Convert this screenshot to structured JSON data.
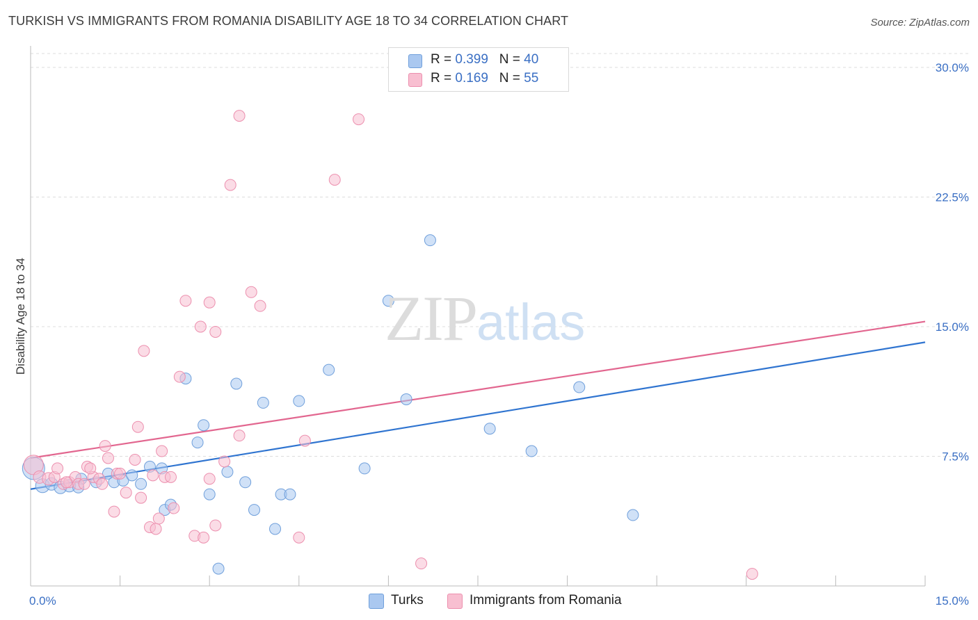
{
  "title": "TURKISH VS IMMIGRANTS FROM ROMANIA DISABILITY AGE 18 TO 34 CORRELATION CHART",
  "source": "Source: ZipAtlas.com",
  "watermark": {
    "zip": "ZIP",
    "atlas": "atlas"
  },
  "legend": {
    "rows": [
      {
        "r_label": "R =",
        "r_value": "0.399",
        "n_label": "N =",
        "n_value": "40"
      },
      {
        "r_label": "R =",
        "r_value": "0.169",
        "n_label": "N =",
        "n_value": "55"
      }
    ]
  },
  "bottom_legend": [
    "Turks",
    "Immigrants from Romania"
  ],
  "colors": {
    "turks_fill": "#aac8f0",
    "turks_stroke": "#6f9fdb",
    "turks_line": "#2f74d0",
    "romania_fill": "#f8bfd1",
    "romania_stroke": "#ec8fae",
    "romania_line": "#e2668f",
    "tick_text": "#3a6fc4",
    "grid": "#dddddd"
  },
  "chart_data": {
    "type": "scatter",
    "title": "TURKISH VS IMMIGRANTS FROM ROMANIA DISABILITY AGE 18 TO 34 CORRELATION CHART",
    "xlabel": "",
    "ylabel": "Disability Age 18 to 34",
    "xlim": [
      0,
      15
    ],
    "ylim": [
      0,
      30
    ],
    "x_tick_labels": [
      "0.0%",
      "15.0%"
    ],
    "y_ticks": [
      7.5,
      15,
      22.5,
      30
    ],
    "y_tick_labels": [
      "7.5%",
      "15.0%",
      "22.5%",
      "30.0%"
    ],
    "grid": true,
    "legend_position": "top-center",
    "series": [
      {
        "name": "Turks",
        "R": 0.399,
        "N": 40,
        "trend": {
          "x": [
            0,
            15
          ],
          "y": [
            5.6,
            14.1
          ]
        },
        "points": [
          [
            0.05,
            6.8,
            16
          ],
          [
            0.2,
            5.8,
            10
          ],
          [
            0.35,
            5.9,
            9
          ],
          [
            0.5,
            5.7,
            9
          ],
          [
            0.65,
            5.8,
            9
          ],
          [
            0.85,
            6.2,
            8
          ],
          [
            1.1,
            6.0,
            8
          ],
          [
            1.3,
            6.5,
            8
          ],
          [
            1.4,
            6.0,
            8
          ],
          [
            1.55,
            6.1,
            8
          ],
          [
            1.7,
            6.4,
            8
          ],
          [
            1.85,
            5.9,
            8
          ],
          [
            2.0,
            6.9,
            8
          ],
          [
            2.2,
            6.8,
            8
          ],
          [
            2.25,
            4.4,
            8
          ],
          [
            2.35,
            4.7,
            8
          ],
          [
            2.6,
            12.0,
            8
          ],
          [
            2.8,
            8.3,
            8
          ],
          [
            2.9,
            9.3,
            8
          ],
          [
            3.0,
            5.3,
            8
          ],
          [
            3.15,
            1.0,
            8
          ],
          [
            3.3,
            6.6,
            8
          ],
          [
            3.45,
            11.7,
            8
          ],
          [
            3.6,
            6.0,
            8
          ],
          [
            3.75,
            4.4,
            8
          ],
          [
            3.9,
            10.6,
            8
          ],
          [
            4.1,
            3.3,
            8
          ],
          [
            4.2,
            5.3,
            8
          ],
          [
            4.35,
            5.3,
            8
          ],
          [
            4.5,
            10.7,
            8
          ],
          [
            5.0,
            12.5,
            8
          ],
          [
            5.6,
            6.8,
            8
          ],
          [
            6.0,
            16.5,
            8
          ],
          [
            6.3,
            10.8,
            8
          ],
          [
            6.7,
            20.0,
            8
          ],
          [
            7.7,
            9.1,
            8
          ],
          [
            8.4,
            7.8,
            8
          ],
          [
            9.2,
            11.5,
            8
          ],
          [
            10.1,
            4.1,
            8
          ],
          [
            0.8,
            5.7,
            8
          ]
        ]
      },
      {
        "name": "Immigrants from Romania",
        "R": 0.169,
        "N": 55,
        "trend": {
          "x": [
            0,
            15
          ],
          "y": [
            7.4,
            15.3
          ]
        },
        "points": [
          [
            0.05,
            7.0,
            14
          ],
          [
            0.15,
            6.3,
            9
          ],
          [
            0.3,
            6.2,
            9
          ],
          [
            0.4,
            6.3,
            8
          ],
          [
            0.45,
            6.8,
            8
          ],
          [
            0.55,
            5.9,
            8
          ],
          [
            0.65,
            6.0,
            8
          ],
          [
            0.75,
            6.3,
            8
          ],
          [
            0.8,
            5.9,
            8
          ],
          [
            0.9,
            5.9,
            8
          ],
          [
            0.95,
            6.9,
            8
          ],
          [
            1.05,
            6.3,
            8
          ],
          [
            1.0,
            6.8,
            8
          ],
          [
            1.15,
            6.2,
            8
          ],
          [
            1.25,
            8.1,
            8
          ],
          [
            1.3,
            7.4,
            8
          ],
          [
            1.4,
            4.3,
            8
          ],
          [
            1.45,
            6.5,
            8
          ],
          [
            1.5,
            6.5,
            8
          ],
          [
            1.6,
            5.4,
            8
          ],
          [
            1.75,
            7.3,
            8
          ],
          [
            1.8,
            9.2,
            8
          ],
          [
            1.85,
            5.1,
            8
          ],
          [
            1.9,
            13.6,
            8
          ],
          [
            2.0,
            3.4,
            8
          ],
          [
            2.1,
            3.3,
            8
          ],
          [
            2.15,
            3.9,
            8
          ],
          [
            2.2,
            7.8,
            8
          ],
          [
            2.25,
            6.3,
            8
          ],
          [
            2.35,
            6.3,
            8
          ],
          [
            2.4,
            4.5,
            8
          ],
          [
            2.5,
            12.1,
            8
          ],
          [
            2.6,
            16.5,
            8
          ],
          [
            2.75,
            2.9,
            8
          ],
          [
            2.85,
            15.0,
            8
          ],
          [
            2.9,
            2.8,
            8
          ],
          [
            3.0,
            16.4,
            8
          ],
          [
            3.1,
            14.7,
            8
          ],
          [
            3.1,
            3.5,
            8
          ],
          [
            3.25,
            7.2,
            8
          ],
          [
            3.35,
            23.2,
            8
          ],
          [
            3.5,
            27.2,
            8
          ],
          [
            3.5,
            8.7,
            8
          ],
          [
            3.7,
            17.0,
            8
          ],
          [
            3.85,
            16.2,
            8
          ],
          [
            4.5,
            2.8,
            8
          ],
          [
            4.6,
            8.4,
            8
          ],
          [
            5.1,
            23.5,
            8
          ],
          [
            5.5,
            27.0,
            8
          ],
          [
            6.55,
            1.3,
            8
          ],
          [
            12.1,
            0.7,
            8
          ],
          [
            0.6,
            6.0,
            8
          ],
          [
            1.2,
            5.9,
            8
          ],
          [
            2.05,
            6.4,
            8
          ],
          [
            3.0,
            6.2,
            8
          ]
        ]
      }
    ]
  }
}
